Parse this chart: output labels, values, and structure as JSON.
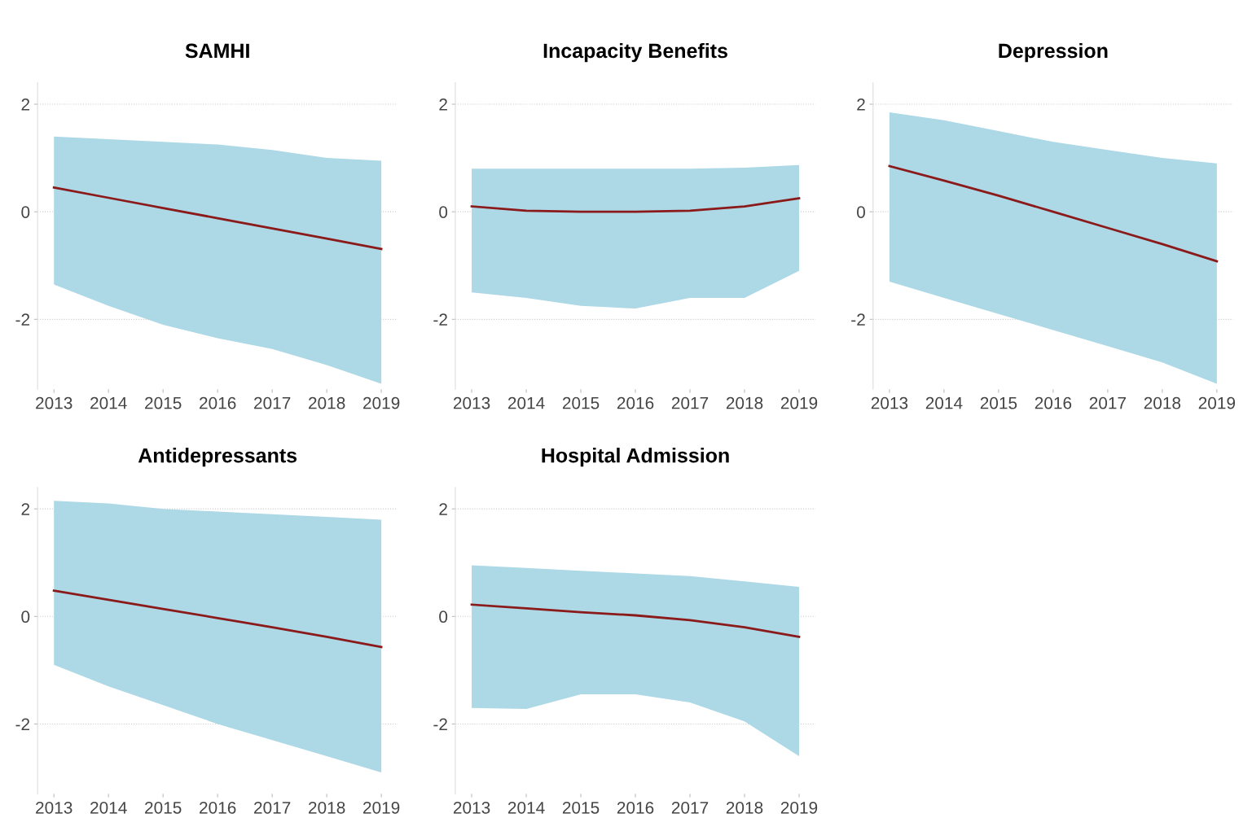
{
  "chart_data": [
    {
      "type": "line",
      "title": "SAMHI",
      "x": [
        2013,
        2014,
        2015,
        2016,
        2017,
        2018,
        2019
      ],
      "xlim": [
        2012.7,
        2019.3
      ],
      "ylim": [
        -3.3,
        2.4
      ],
      "xticks": [
        2013,
        2014,
        2015,
        2016,
        2017,
        2018,
        2019
      ],
      "yticks": [
        -2,
        0,
        2
      ],
      "grid": "y",
      "series": [
        {
          "color": "#8b1a1a",
          "values": [
            0.45,
            0.26,
            0.07,
            -0.12,
            -0.31,
            -0.5,
            -0.69
          ],
          "lower": [
            -1.35,
            -1.75,
            -2.1,
            -2.35,
            -2.55,
            -2.85,
            -3.2
          ],
          "upper": [
            1.4,
            1.35,
            1.3,
            1.25,
            1.15,
            1.0,
            0.95
          ]
        }
      ]
    },
    {
      "type": "line",
      "title": "Incapacity Benefits",
      "x": [
        2013,
        2014,
        2015,
        2016,
        2017,
        2018,
        2019
      ],
      "xlim": [
        2012.7,
        2019.3
      ],
      "ylim": [
        -3.3,
        2.4
      ],
      "xticks": [
        2013,
        2014,
        2015,
        2016,
        2017,
        2018,
        2019
      ],
      "yticks": [
        -2,
        0,
        2
      ],
      "grid": "y",
      "series": [
        {
          "color": "#8b1a1a",
          "values": [
            0.1,
            0.02,
            0.0,
            0.0,
            0.02,
            0.1,
            0.25
          ],
          "lower": [
            -1.5,
            -1.6,
            -1.75,
            -1.8,
            -1.6,
            -1.6,
            -1.1
          ],
          "upper": [
            0.8,
            0.8,
            0.8,
            0.8,
            0.8,
            0.82,
            0.87
          ]
        }
      ]
    },
    {
      "type": "line",
      "title": "Depression",
      "x": [
        2013,
        2014,
        2015,
        2016,
        2017,
        2018,
        2019
      ],
      "xlim": [
        2012.7,
        2019.3
      ],
      "ylim": [
        -3.3,
        2.4
      ],
      "xticks": [
        2013,
        2014,
        2015,
        2016,
        2017,
        2018,
        2019
      ],
      "yticks": [
        -2,
        0,
        2
      ],
      "grid": "y",
      "series": [
        {
          "color": "#8b1a1a",
          "values": [
            0.85,
            0.58,
            0.3,
            0.0,
            -0.3,
            -0.6,
            -0.92
          ],
          "lower": [
            -1.3,
            -1.6,
            -1.9,
            -2.2,
            -2.5,
            -2.8,
            -3.2
          ],
          "upper": [
            1.85,
            1.7,
            1.5,
            1.3,
            1.15,
            1.0,
            0.9
          ]
        }
      ]
    },
    {
      "type": "line",
      "title": "Antidepressants",
      "x": [
        2013,
        2014,
        2015,
        2016,
        2017,
        2018,
        2019
      ],
      "xlim": [
        2012.7,
        2019.3
      ],
      "ylim": [
        -3.3,
        2.4
      ],
      "xticks": [
        2013,
        2014,
        2015,
        2016,
        2017,
        2018,
        2019
      ],
      "yticks": [
        -2,
        0,
        2
      ],
      "grid": "y",
      "series": [
        {
          "color": "#8b1a1a",
          "values": [
            0.48,
            0.31,
            0.14,
            -0.03,
            -0.2,
            -0.38,
            -0.57
          ],
          "lower": [
            -0.9,
            -1.3,
            -1.65,
            -2.0,
            -2.3,
            -2.6,
            -2.9
          ],
          "upper": [
            2.15,
            2.1,
            2.0,
            1.95,
            1.9,
            1.85,
            1.8
          ]
        }
      ]
    },
    {
      "type": "line",
      "title": "Hospital Admission",
      "x": [
        2013,
        2014,
        2015,
        2016,
        2017,
        2018,
        2019
      ],
      "xlim": [
        2012.7,
        2019.3
      ],
      "ylim": [
        -3.3,
        2.4
      ],
      "xticks": [
        2013,
        2014,
        2015,
        2016,
        2017,
        2018,
        2019
      ],
      "yticks": [
        -2,
        0,
        2
      ],
      "grid": "y",
      "series": [
        {
          "color": "#8b1a1a",
          "values": [
            0.22,
            0.15,
            0.08,
            0.02,
            -0.07,
            -0.2,
            -0.38
          ],
          "lower": [
            -1.7,
            -1.72,
            -1.45,
            -1.45,
            -1.6,
            -1.95,
            -2.6
          ],
          "upper": [
            0.95,
            0.9,
            0.85,
            0.8,
            0.75,
            0.65,
            0.55
          ]
        }
      ]
    }
  ]
}
